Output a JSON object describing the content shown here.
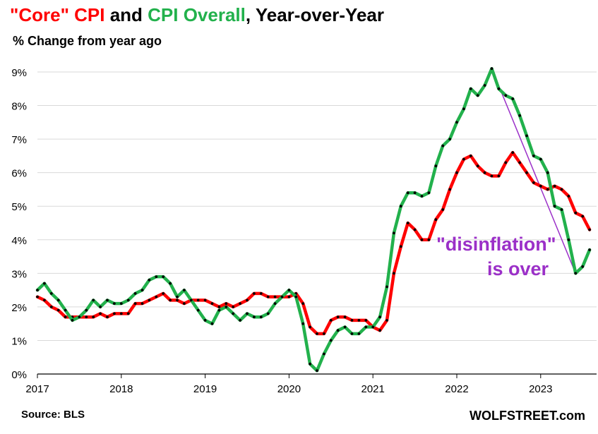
{
  "title": {
    "part1": "\"Core\"  CPI",
    "part2": " and ",
    "part3": "CPI Overall",
    "part4": ", Year-over-Year"
  },
  "subtitle": "% Change from year ago",
  "source": "Source: BLS",
  "brand": "WOLFSTREET.com",
  "annotation": {
    "line1": "\"disinflation\"",
    "line2": "is over"
  },
  "colors": {
    "core": "#ff0000",
    "overall": "#22b14c",
    "dots": "#000000",
    "annotation": "#9b30c8",
    "grid": "#d9d9d9"
  },
  "chart_data": {
    "type": "line",
    "title": "\"Core\" CPI and CPI Overall, Year-over-Year",
    "ylabel": "% Change from year ago",
    "ylim": [
      0,
      9
    ],
    "yticks": [
      0,
      1,
      2,
      3,
      4,
      5,
      6,
      7,
      8,
      9
    ],
    "ytick_labels": [
      "0%",
      "1%",
      "2%",
      "3%",
      "4%",
      "5%",
      "6%",
      "7%",
      "8%",
      "9%"
    ],
    "xlim": [
      2017.0,
      2023.6667
    ],
    "xticks": [
      2017,
      2018,
      2019,
      2020,
      2021,
      2022,
      2023
    ],
    "xtick_labels": [
      "2017",
      "2018",
      "2019",
      "2020",
      "2021",
      "2022",
      "2023"
    ],
    "grid": "horizontal",
    "x_start": "2017-01",
    "x_step": "month",
    "series": [
      {
        "name": "\"Core\" CPI",
        "color": "#ff0000",
        "values": [
          2.3,
          2.2,
          2.0,
          1.9,
          1.7,
          1.7,
          1.7,
          1.7,
          1.7,
          1.8,
          1.7,
          1.8,
          1.8,
          1.8,
          2.1,
          2.1,
          2.2,
          2.3,
          2.4,
          2.2,
          2.2,
          2.1,
          2.2,
          2.2,
          2.2,
          2.1,
          2.0,
          2.1,
          2.0,
          2.1,
          2.2,
          2.4,
          2.4,
          2.3,
          2.3,
          2.3,
          2.3,
          2.4,
          2.1,
          1.4,
          1.2,
          1.2,
          1.6,
          1.7,
          1.7,
          1.6,
          1.6,
          1.6,
          1.4,
          1.3,
          1.6,
          3.0,
          3.8,
          4.5,
          4.3,
          4.0,
          4.0,
          4.6,
          4.9,
          5.5,
          6.0,
          6.4,
          6.5,
          6.2,
          6.0,
          5.9,
          5.9,
          6.3,
          6.6,
          6.3,
          6.0,
          5.7,
          5.6,
          5.5,
          5.6,
          5.5,
          5.3,
          4.8,
          4.7,
          4.3
        ]
      },
      {
        "name": "CPI Overall",
        "color": "#22b14c",
        "values": [
          2.5,
          2.7,
          2.4,
          2.2,
          1.9,
          1.6,
          1.7,
          1.9,
          2.2,
          2.0,
          2.2,
          2.1,
          2.1,
          2.2,
          2.4,
          2.5,
          2.8,
          2.9,
          2.9,
          2.7,
          2.3,
          2.5,
          2.2,
          1.9,
          1.6,
          1.5,
          1.9,
          2.0,
          1.8,
          1.6,
          1.8,
          1.7,
          1.7,
          1.8,
          2.1,
          2.3,
          2.5,
          2.3,
          1.5,
          0.3,
          0.1,
          0.6,
          1.0,
          1.3,
          1.4,
          1.2,
          1.2,
          1.4,
          1.4,
          1.7,
          2.6,
          4.2,
          5.0,
          5.4,
          5.4,
          5.3,
          5.4,
          6.2,
          6.8,
          7.0,
          7.5,
          7.9,
          8.5,
          8.3,
          8.6,
          9.1,
          8.5,
          8.3,
          8.2,
          7.7,
          7.1,
          6.5,
          6.4,
          6.0,
          5.0,
          4.9,
          4.0,
          3.0,
          3.2,
          3.7
        ]
      }
    ],
    "trendline": {
      "from": [
        "2022-06",
        9.1
      ],
      "to": [
        "2023-06",
        3.0
      ]
    },
    "annotations": [
      "\"disinflation\"",
      "is over"
    ]
  }
}
